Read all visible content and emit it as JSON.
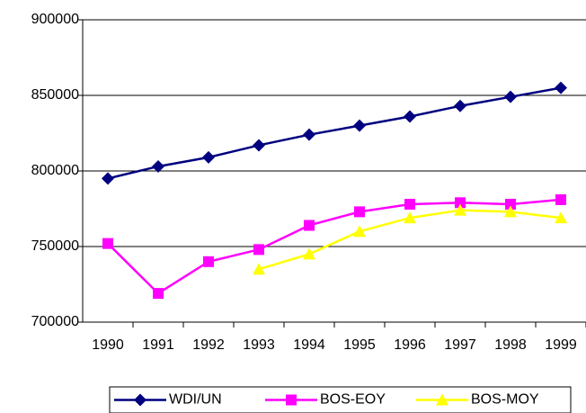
{
  "chart_data": {
    "type": "line",
    "categories": [
      "1990",
      "1991",
      "1992",
      "1993",
      "1994",
      "1995",
      "1996",
      "1997",
      "1998",
      "1999"
    ],
    "series": [
      {
        "name": "WDI/UN",
        "color": "#000080",
        "marker": "diamond",
        "values": [
          795000,
          803000,
          809000,
          817000,
          824000,
          830000,
          836000,
          843000,
          849000,
          855000
        ]
      },
      {
        "name": "BOS-EOY",
        "color": "#ff00ff",
        "marker": "square",
        "values": [
          752000,
          719000,
          740000,
          748000,
          764000,
          773000,
          778000,
          779000,
          778000,
          781000
        ]
      },
      {
        "name": "BOS-MOY",
        "color": "#ffff00",
        "marker": "triangle",
        "values": [
          null,
          null,
          null,
          735000,
          745000,
          760000,
          769000,
          774000,
          773000,
          769000
        ]
      }
    ],
    "ylim": [
      700000,
      900000
    ],
    "yticks": [
      700000,
      750000,
      800000,
      850000,
      900000
    ],
    "grid": true,
    "legend": "bottom"
  }
}
